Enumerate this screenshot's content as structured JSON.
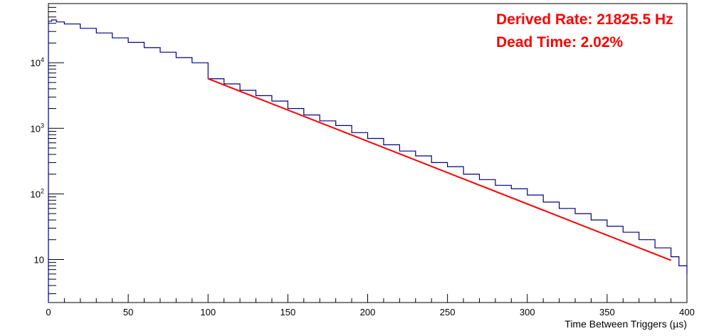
{
  "chart_data": {
    "type": "line",
    "title": "",
    "xlabel": "Time Between Triggers (µs)",
    "ylabel": "",
    "xlim": [
      0,
      400
    ],
    "ylim": [
      2.2,
      80000
    ],
    "y_scale": "log",
    "grid": false,
    "x_ticks": [
      "0",
      "50",
      "100",
      "150",
      "200",
      "250",
      "300",
      "350",
      "400"
    ],
    "y_ticks": [
      {
        "value": 10,
        "label": "10"
      },
      {
        "value": 100,
        "label": "10^2"
      },
      {
        "value": 1000,
        "label": "10^3"
      },
      {
        "value": 10000,
        "label": "10^4"
      }
    ],
    "series": [
      {
        "style": "histogram",
        "color": "#000080",
        "x": [
          0,
          2,
          5,
          10,
          20,
          30,
          40,
          50,
          60,
          70,
          80,
          90,
          100,
          110,
          120,
          130,
          140,
          150,
          160,
          170,
          180,
          190,
          200,
          210,
          220,
          230,
          240,
          250,
          260,
          270,
          280,
          290,
          300,
          310,
          320,
          330,
          340,
          350,
          360,
          370,
          380,
          390,
          395,
          400
        ],
        "values": [
          43000,
          45000,
          42000,
          39000,
          33500,
          28500,
          24000,
          20500,
          17000,
          14500,
          12000,
          10000,
          5700,
          4750,
          3800,
          3150,
          2600,
          2000,
          1600,
          1300,
          1100,
          860,
          700,
          560,
          450,
          380,
          300,
          260,
          200,
          165,
          135,
          120,
          96,
          75,
          60,
          50,
          40,
          32,
          26,
          20,
          15,
          11,
          8,
          6
        ]
      },
      {
        "style": "fit",
        "color": "#ff0000",
        "x": [
          100,
          390
        ],
        "values": [
          5700,
          9.7
        ]
      }
    ],
    "annotations": [
      {
        "text": "Derived Rate: 21825.5 Hz",
        "color": "#ff0000"
      },
      {
        "text": "Dead Time: 2.02%",
        "color": "#ff0000"
      }
    ]
  }
}
